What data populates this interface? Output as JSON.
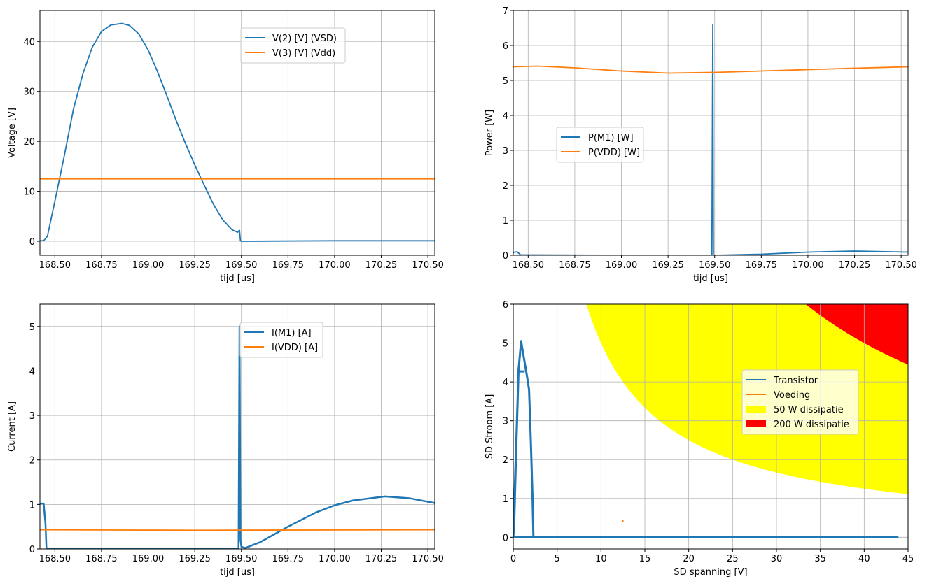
{
  "chart_data": [
    {
      "type": "line",
      "xlabel": "tijd [us]",
      "ylabel": "Voltage [V]",
      "xlim": [
        168.42,
        170.537
      ],
      "ylim": [
        -2.8,
        46.2
      ],
      "xticks": [
        "168.50",
        "168.75",
        "169.00",
        "169.25",
        "169.50",
        "169.75",
        "170.00",
        "170.25",
        "170.50"
      ],
      "yticks": [
        "0",
        "10",
        "20",
        "30",
        "40"
      ],
      "grid": true,
      "legend": "top-center",
      "series": [
        {
          "name": "V(2) [V]  (VSD)",
          "color": "#1f77b4",
          "x": [
            168.42,
            168.44,
            168.46,
            168.5,
            168.55,
            168.6,
            168.65,
            168.7,
            168.75,
            168.8,
            168.86,
            168.9,
            168.95,
            169.0,
            169.05,
            169.1,
            169.15,
            169.2,
            169.25,
            169.3,
            169.35,
            169.4,
            169.45,
            169.48,
            169.49,
            169.495,
            169.5,
            170.0,
            170.537
          ],
          "y": [
            0.1,
            0.1,
            1,
            8,
            17,
            26.5,
            33.5,
            38.8,
            42,
            43.3,
            43.6,
            43.2,
            41.5,
            38.3,
            34,
            29.2,
            24.2,
            19.6,
            15.3,
            11.3,
            7.4,
            4.3,
            2.3,
            1.8,
            2.2,
            0.1,
            0,
            0.1,
            0.1
          ]
        },
        {
          "name": "V(3) [V]  (Vdd)",
          "color": "#ff7f0e",
          "x": [
            168.42,
            170.537
          ],
          "y": [
            12.5,
            12.5
          ]
        }
      ]
    },
    {
      "type": "line",
      "xlabel": "tijd [us]",
      "ylabel": "Power [W]",
      "xlim": [
        168.42,
        170.537
      ],
      "ylim": [
        0,
        7
      ],
      "xticks": [
        "168.50",
        "168.75",
        "169.00",
        "169.25",
        "169.50",
        "169.75",
        "170.00",
        "170.25",
        "170.50"
      ],
      "yticks": [
        "0",
        "1",
        "2",
        "3",
        "4",
        "5",
        "6",
        "7"
      ],
      "grid": true,
      "legend": "center-left",
      "series": [
        {
          "name": "P(M1) [W]",
          "color": "#1f77b4",
          "x": [
            168.42,
            168.44,
            168.46,
            169.0,
            169.485,
            169.49,
            169.493,
            169.5,
            169.75,
            170.0,
            170.25,
            170.537
          ],
          "y": [
            0.08,
            0.1,
            0.01,
            0,
            0,
            6.6,
            0,
            0,
            0.03,
            0.09,
            0.12,
            0.09
          ]
        },
        {
          "name": "P(VDD) [W]",
          "color": "#ff7f0e",
          "x": [
            168.42,
            168.55,
            168.75,
            169.0,
            169.25,
            169.5,
            169.75,
            170.0,
            170.25,
            170.537
          ],
          "y": [
            5.39,
            5.41,
            5.36,
            5.27,
            5.21,
            5.23,
            5.27,
            5.31,
            5.35,
            5.39
          ]
        }
      ]
    },
    {
      "type": "line",
      "xlabel": "tijd [us]",
      "ylabel": "Current [A]",
      "xlim": [
        168.42,
        170.537
      ],
      "ylim": [
        0,
        5.5
      ],
      "xticks": [
        "168.50",
        "168.75",
        "169.00",
        "169.25",
        "169.50",
        "169.75",
        "170.00",
        "170.25",
        "170.50"
      ],
      "yticks": [
        "0",
        "1",
        "2",
        "3",
        "4",
        "5"
      ],
      "grid": true,
      "legend": "top-center",
      "series": [
        {
          "name": "I(M1) [A]",
          "color": "#1f77b4",
          "x": [
            168.42,
            168.44,
            168.45,
            168.455,
            168.46,
            169.485,
            169.49,
            169.495,
            169.5,
            169.52,
            169.6,
            169.75,
            169.9,
            170.0,
            170.1,
            170.27,
            170.4,
            170.537
          ],
          "y": [
            1.02,
            1.02,
            0.55,
            0,
            0,
            0,
            5.0,
            0.2,
            0.05,
            0.02,
            0.15,
            0.5,
            0.82,
            0.98,
            1.09,
            1.18,
            1.14,
            1.03
          ]
        },
        {
          "name": "I(VDD) [A]",
          "color": "#ff7f0e",
          "x": [
            168.42,
            169.25,
            170.537
          ],
          "y": [
            0.43,
            0.42,
            0.43
          ]
        }
      ]
    },
    {
      "type": "line",
      "xlabel": "SD spanning [V]",
      "ylabel": "SD Stroom [A]",
      "xlim": [
        0,
        45
      ],
      "ylim": [
        -0.3,
        6
      ],
      "xticks": [
        "0",
        "5",
        "10",
        "15",
        "20",
        "25",
        "30",
        "35",
        "40",
        "45"
      ],
      "yticks": [
        "0",
        "1",
        "2",
        "3",
        "4",
        "5",
        "6"
      ],
      "grid": true,
      "legend": "center-right",
      "series": [
        {
          "name": "Transistor",
          "color": "#1f77b4",
          "x": [
            0,
            0.1,
            0.3,
            0.5,
            0.6,
            0.9,
            1.0,
            1.3,
            1.6,
            1.8,
            2.0,
            2.2,
            2.3,
            43.8,
            0.2,
            0,
            0.6,
            1.3
          ],
          "y": [
            0,
            0.3,
            2,
            3.5,
            4.3,
            5.05,
            4.9,
            4.5,
            4.1,
            3.8,
            2.5,
            1,
            0,
            0,
            0,
            0,
            4.27,
            4.27
          ]
        },
        {
          "name": "Voeding",
          "color": "#ff7f0e",
          "x": [
            12.5,
            12.5
          ],
          "y": [
            0.4,
            0.45
          ]
        }
      ],
      "areas": [
        {
          "name": "50 W dissipatie",
          "color": "#ffff00",
          "power": 50
        },
        {
          "name": "200 W dissipatie",
          "color": "#ff0000",
          "power": 200
        }
      ]
    }
  ]
}
